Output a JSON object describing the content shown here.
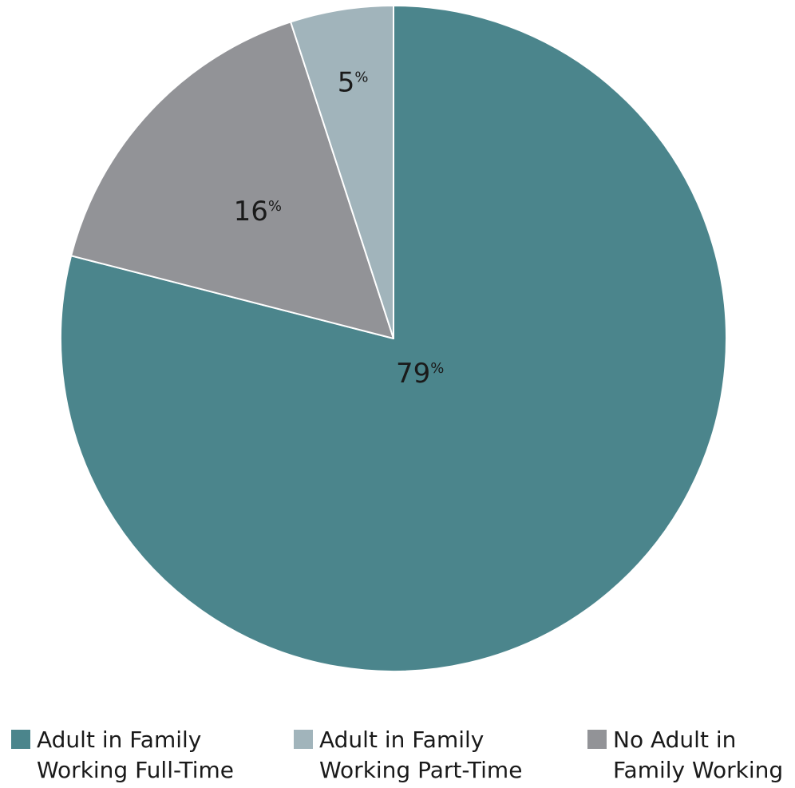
{
  "chart_data": {
    "type": "pie",
    "title": "",
    "start_angle_deg": 0,
    "direction": "clockwise",
    "slices": [
      {
        "name": "Adult in Family Working Full-Time",
        "value": 79,
        "label": "79",
        "unit": "%",
        "color": "#4b858c"
      },
      {
        "name": "No Adult in Family Working",
        "value": 16,
        "label": "16",
        "unit": "%",
        "color": "#929397"
      },
      {
        "name": "Adult in Family Working Part-Time",
        "value": 5,
        "label": "5",
        "unit": "%",
        "color": "#a1b4bb"
      }
    ],
    "legend": [
      {
        "label": "Adult in Family\nWorking Full-Time",
        "color": "#4b858c"
      },
      {
        "label": "Adult in Family\nWorking Part-Time",
        "color": "#a1b4bb"
      },
      {
        "label": "No Adult in\nFamily Working",
        "color": "#929397"
      }
    ],
    "legend_position": "bottom"
  }
}
